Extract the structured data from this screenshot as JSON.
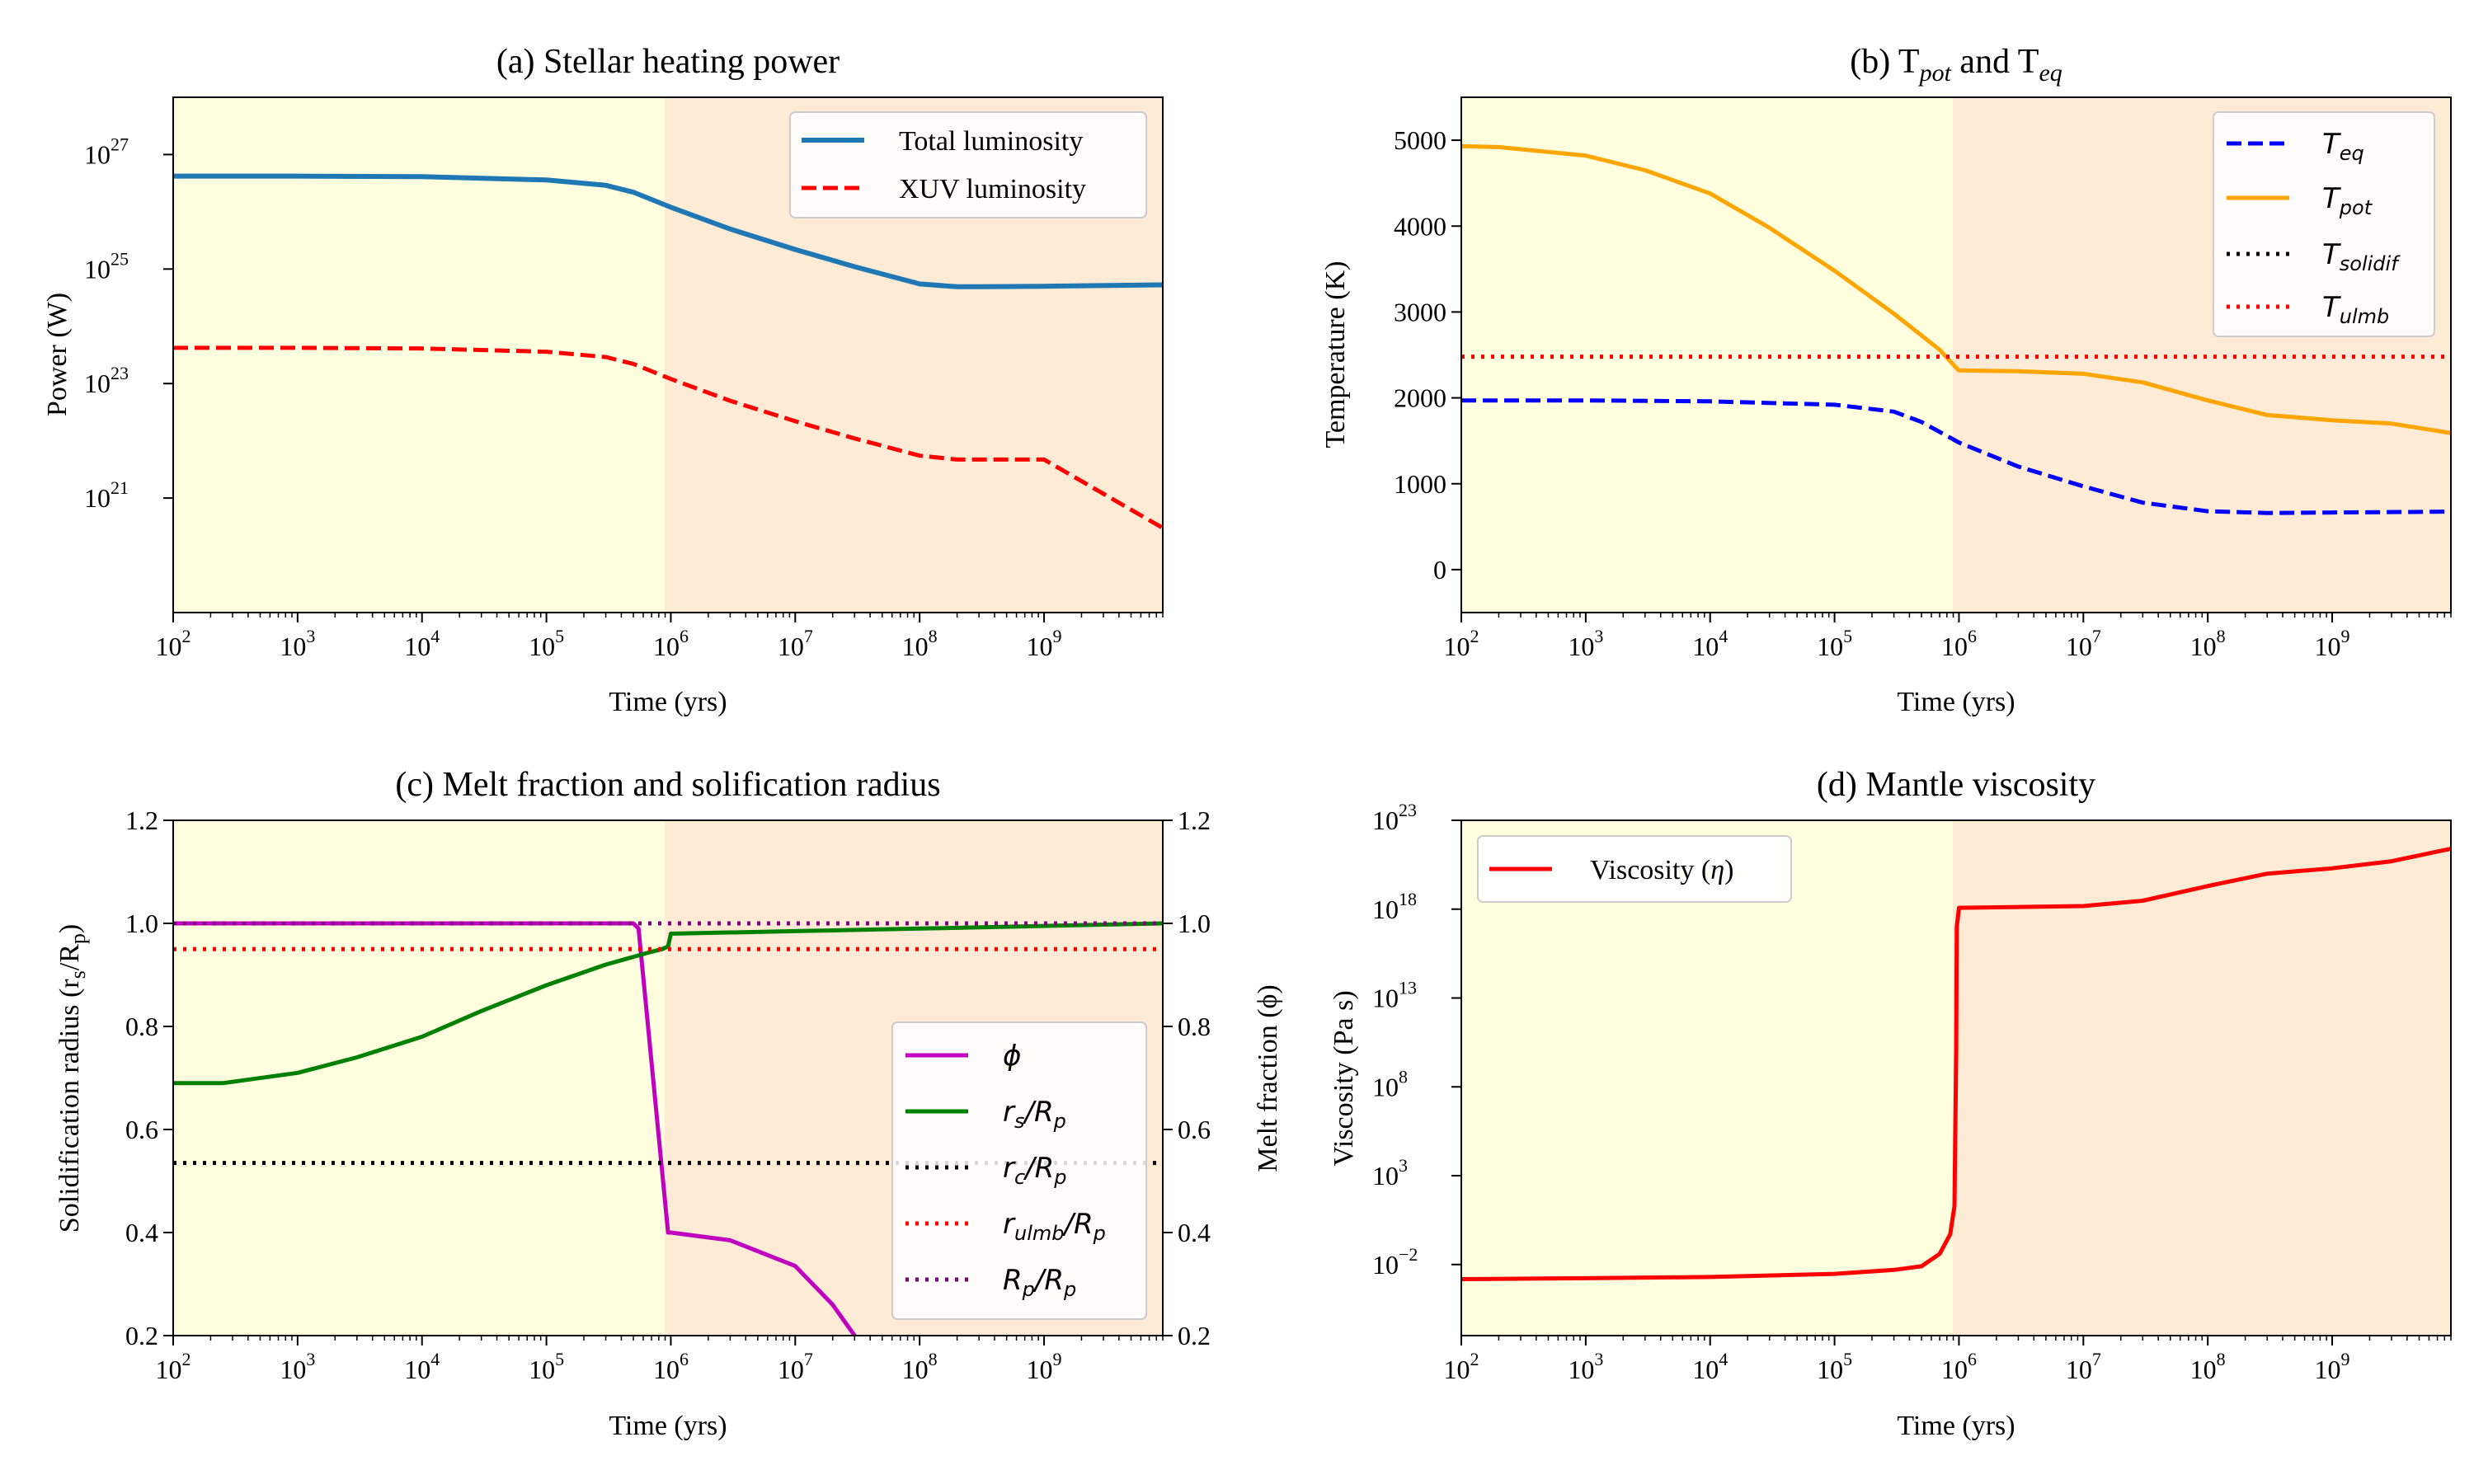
{
  "chart_data": [
    {
      "id": "a",
      "type": "line",
      "title": "(a) Stellar heating power",
      "xlabel": "Time (yrs)",
      "ylabel": "Power (W)",
      "xscale": "log",
      "yscale": "log",
      "xlim": [
        100,
        9000000000
      ],
      "ylim": [
        1e+19,
        1e+28
      ],
      "xticks": [
        {
          "value": 100,
          "base": "10",
          "exp": "2"
        },
        {
          "value": 1000,
          "base": "10",
          "exp": "3"
        },
        {
          "value": 10000,
          "base": "10",
          "exp": "4"
        },
        {
          "value": 100000,
          "base": "10",
          "exp": "5"
        },
        {
          "value": 1000000,
          "base": "10",
          "exp": "6"
        },
        {
          "value": 10000000,
          "base": "10",
          "exp": "7"
        },
        {
          "value": 100000000,
          "base": "10",
          "exp": "8"
        },
        {
          "value": 1000000000,
          "base": "10",
          "exp": "9"
        }
      ],
      "yticks": [
        {
          "value": 1e+21,
          "base": "10",
          "exp": "21"
        },
        {
          "value": 1e+23,
          "base": "10",
          "exp": "23"
        },
        {
          "value": 1e+25,
          "base": "10",
          "exp": "25"
        },
        {
          "value": 1e+27,
          "base": "10",
          "exp": "27"
        }
      ],
      "legend_position": "upper-right",
      "series": [
        {
          "name": "Total luminosity",
          "color": "#1f77b4",
          "style": "solid",
          "x": [
            100,
            1000,
            10000,
            100000,
            300000,
            500000,
            1000000,
            3000000,
            10000000,
            30000000,
            100000000,
            200000000,
            300000000,
            1000000000,
            9000000000
          ],
          "y": [
            4.2e+26,
            4.2e+26,
            4.1e+26,
            3.6e+26,
            2.9e+26,
            2.2e+26,
            1.2e+26,
            5e+25,
            2.2e+25,
            1.1e+25,
            5.5e+24,
            4.9e+24,
            4.9e+24,
            5e+24,
            5.3e+24
          ]
        },
        {
          "name": "XUV luminosity",
          "color": "#ff0000",
          "style": "dashed",
          "x": [
            100,
            1000,
            10000,
            100000,
            300000,
            500000,
            1000000,
            3000000,
            10000000,
            30000000,
            100000000,
            200000000,
            1000000000,
            9000000000
          ],
          "y": [
            4.2e+23,
            4.2e+23,
            4.1e+23,
            3.6e+23,
            2.9e+23,
            2.2e+23,
            1.2e+23,
            5e+22,
            2.2e+22,
            1.1e+22,
            5.5e+21,
            4.7e+21,
            4.7e+21,
            3e+20
          ]
        }
      ]
    },
    {
      "id": "b",
      "type": "line",
      "title_main": "(b) T",
      "title_sub1": "pot",
      "title_mid": " and T",
      "title_sub2": "eq",
      "xlabel": "Time (yrs)",
      "ylabel": "Temperature (K)",
      "xscale": "log",
      "xlim": [
        100,
        9000000000
      ],
      "ylim": [
        -500,
        5500
      ],
      "xticks": [
        {
          "value": 100,
          "base": "10",
          "exp": "2"
        },
        {
          "value": 1000,
          "base": "10",
          "exp": "3"
        },
        {
          "value": 10000,
          "base": "10",
          "exp": "4"
        },
        {
          "value": 100000,
          "base": "10",
          "exp": "5"
        },
        {
          "value": 1000000,
          "base": "10",
          "exp": "6"
        },
        {
          "value": 10000000,
          "base": "10",
          "exp": "7"
        },
        {
          "value": 100000000,
          "base": "10",
          "exp": "8"
        },
        {
          "value": 1000000000,
          "base": "10",
          "exp": "9"
        }
      ],
      "yticks": [
        {
          "value": 0,
          "label": "0"
        },
        {
          "value": 1000,
          "label": "1000"
        },
        {
          "value": 2000,
          "label": "2000"
        },
        {
          "value": 3000,
          "label": "3000"
        },
        {
          "value": 4000,
          "label": "4000"
        },
        {
          "value": 5000,
          "label": "5000"
        }
      ],
      "legend_position": "upper-right",
      "series": [
        {
          "name": "T",
          "sub": "eq",
          "color": "#0000ff",
          "style": "dashed",
          "x": [
            100,
            1000,
            10000,
            100000,
            300000,
            500000,
            1000000,
            3000000,
            10000000,
            30000000,
            100000000,
            300000000,
            1000000000,
            9000000000
          ],
          "y": [
            1970,
            1970,
            1960,
            1920,
            1840,
            1720,
            1480,
            1200,
            970,
            780,
            680,
            660,
            665,
            675
          ]
        },
        {
          "name": "T",
          "sub": "pot",
          "color": "#ffa500",
          "style": "solid",
          "x": [
            100,
            200,
            1000,
            3000,
            10000,
            30000,
            100000,
            300000,
            700000,
            950000,
            1000000,
            3000000,
            10000000,
            30000000,
            100000000,
            300000000,
            1000000000,
            3000000000,
            9000000000
          ],
          "y": [
            4930,
            4920,
            4820,
            4650,
            4380,
            3980,
            3480,
            2980,
            2560,
            2350,
            2320,
            2310,
            2280,
            2180,
            1970,
            1800,
            1740,
            1700,
            1590
          ]
        },
        {
          "name": "T",
          "sub": "solidif",
          "color": "#000000",
          "style": "dotted",
          "x": [],
          "y": []
        },
        {
          "name": "T",
          "sub": "ulmb",
          "color": "#ff0000",
          "style": "dotted",
          "x": [
            100,
            9000000000
          ],
          "y": [
            2480,
            2480
          ]
        }
      ]
    },
    {
      "id": "c",
      "type": "line",
      "title": "(c) Melt fraction and solification radius",
      "xlabel": "Time (yrs)",
      "ylabel_main": "Solidification radius (r",
      "ylabel_sub1": "s",
      "ylabel_mid": "/R",
      "ylabel_sub2": "p",
      "ylabel_end": ")",
      "ylabel_right": "Melt fraction (ϕ)",
      "xscale": "log",
      "xlim": [
        100,
        9000000000
      ],
      "ylim": [
        0.2,
        1.2
      ],
      "ylim_right": [
        0.2,
        1.2
      ],
      "xticks": [
        {
          "value": 100,
          "base": "10",
          "exp": "2"
        },
        {
          "value": 1000,
          "base": "10",
          "exp": "3"
        },
        {
          "value": 10000,
          "base": "10",
          "exp": "4"
        },
        {
          "value": 100000,
          "base": "10",
          "exp": "5"
        },
        {
          "value": 1000000,
          "base": "10",
          "exp": "6"
        },
        {
          "value": 10000000,
          "base": "10",
          "exp": "7"
        },
        {
          "value": 100000000,
          "base": "10",
          "exp": "8"
        },
        {
          "value": 1000000000,
          "base": "10",
          "exp": "9"
        }
      ],
      "yticks": [
        {
          "value": 0.2,
          "label": "0.2"
        },
        {
          "value": 0.4,
          "label": "0.4"
        },
        {
          "value": 0.6,
          "label": "0.6"
        },
        {
          "value": 0.8,
          "label": "0.8"
        },
        {
          "value": 1.0,
          "label": "1.0"
        },
        {
          "value": 1.2,
          "label": "1.2"
        }
      ],
      "legend_position": "lower-right",
      "series": [
        {
          "name": "ϕ",
          "color": "#bf00bf",
          "style": "solid",
          "x": [
            100,
            500000,
            550000,
            950000,
            1000000,
            3000000,
            10000000,
            20000000,
            30000000
          ],
          "y": [
            1.0,
            1.0,
            0.99,
            0.4,
            0.4,
            0.385,
            0.335,
            0.26,
            0.2
          ]
        },
        {
          "name": "r",
          "sub": "s",
          "mid": "/R",
          "sub2": "p",
          "color": "#008000",
          "style": "solid",
          "x": [
            100,
            250,
            1000,
            3000,
            10000,
            30000,
            100000,
            300000,
            700000,
            850000,
            950000,
            1000000,
            10000000,
            100000000,
            1000000000,
            9000000000
          ],
          "y": [
            0.69,
            0.69,
            0.71,
            0.74,
            0.78,
            0.83,
            0.88,
            0.92,
            0.945,
            0.95,
            0.955,
            0.98,
            0.985,
            0.99,
            0.995,
            1.0
          ]
        },
        {
          "name": "r",
          "sub": "c",
          "mid": "/R",
          "sub2": "p",
          "color": "#000000",
          "style": "dotted",
          "x": [
            100,
            9000000000
          ],
          "y": [
            0.535,
            0.535
          ]
        },
        {
          "name": "r",
          "sub": "ulmb",
          "mid": "/R",
          "sub2": "p",
          "color": "#ff0000",
          "style": "dotted",
          "x": [
            100,
            9000000000
          ],
          "y": [
            0.95,
            0.95
          ]
        },
        {
          "name": "R",
          "sub": "p",
          "mid": "/R",
          "sub2": "p",
          "color": "#800080",
          "style": "dotted",
          "x": [
            100,
            9000000000
          ],
          "y": [
            1.0,
            1.0
          ]
        }
      ]
    },
    {
      "id": "d",
      "type": "line",
      "title": "(d) Mantle viscosity",
      "xlabel": "Time (yrs)",
      "ylabel": "Viscosity (Pa s)",
      "xscale": "log",
      "yscale": "log",
      "xlim": [
        100,
        9000000000
      ],
      "ylim": [
        1e-06,
        1e+23
      ],
      "xticks": [
        {
          "value": 100,
          "base": "10",
          "exp": "2"
        },
        {
          "value": 1000,
          "base": "10",
          "exp": "3"
        },
        {
          "value": 10000,
          "base": "10",
          "exp": "4"
        },
        {
          "value": 100000,
          "base": "10",
          "exp": "5"
        },
        {
          "value": 1000000,
          "base": "10",
          "exp": "6"
        },
        {
          "value": 10000000,
          "base": "10",
          "exp": "7"
        },
        {
          "value": 100000000,
          "base": "10",
          "exp": "8"
        },
        {
          "value": 1000000000,
          "base": "10",
          "exp": "9"
        }
      ],
      "yticks": [
        {
          "value": 0.01,
          "base": "10",
          "exp": "−2"
        },
        {
          "value": 1000,
          "base": "10",
          "exp": "3"
        },
        {
          "value": 100000000,
          "base": "10",
          "exp": "8"
        },
        {
          "value": 10000000000000,
          "base": "10",
          "exp": "13"
        },
        {
          "value": 1e+18,
          "base": "10",
          "exp": "18"
        },
        {
          "value": 1e+23,
          "base": "10",
          "exp": "23"
        }
      ],
      "legend_position": "upper-left",
      "series": [
        {
          "name": "Viscosity (",
          "sym": "η",
          "end": ")",
          "color": "#ff0000",
          "style": "solid",
          "x": [
            100,
            1000,
            10000,
            100000,
            300000,
            500000,
            700000,
            850000,
            920000,
            950000,
            960000,
            1000000,
            10000000,
            30000000,
            100000000,
            300000000,
            1000000000,
            3000000000,
            9000000000
          ],
          "y": [
            0.0015,
            0.0017,
            0.002,
            0.003,
            0.005,
            0.008,
            0.04,
            0.5,
            20,
            10000000000,
            1e+17,
            1.2e+18,
            1.5e+18,
            3e+18,
            2e+19,
            1e+20,
            2e+20,
            5e+20,
            2.5e+21
          ]
        }
      ]
    }
  ],
  "regions": {
    "early_color": "#ffffe0",
    "late_color": "#fdebd6",
    "boundary_year": 1000000
  }
}
